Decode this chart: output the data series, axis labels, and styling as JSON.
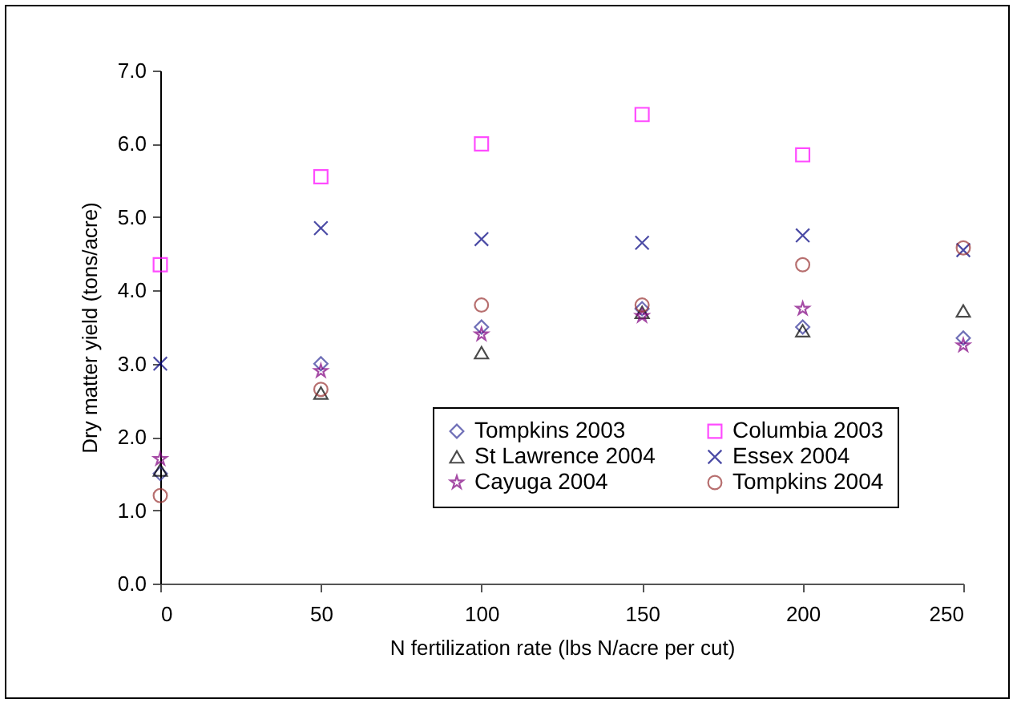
{
  "chart_data": {
    "type": "scatter",
    "xlabel": "N fertilization rate (lbs N/acre per cut)",
    "ylabel": "Dry matter yield (tons/acre)",
    "x": [
      0,
      50,
      100,
      150,
      200,
      250
    ],
    "xlim": [
      0,
      250
    ],
    "xticks": [
      0,
      50,
      100,
      150,
      200,
      250
    ],
    "ylim": [
      0,
      7
    ],
    "yticks": [
      {
        "value": 0,
        "label": "0.0"
      },
      {
        "value": 1,
        "label": "1.0"
      },
      {
        "value": 2,
        "label": "2.0"
      },
      {
        "value": 3,
        "label": "3.0"
      },
      {
        "value": 4,
        "label": "4.0"
      },
      {
        "value": 5,
        "label": "5.0"
      },
      {
        "value": 6,
        "label": "6.0"
      },
      {
        "value": 7,
        "label": "7.0"
      }
    ],
    "grid": false,
    "legend": "bottom right",
    "series": [
      {
        "name": "Tompkins 2003",
        "color": "#333399",
        "marker": "diamond",
        "values": [
          1.5,
          3.0,
          3.5,
          3.75,
          3.5,
          3.35
        ]
      },
      {
        "name": "Columbia 2003",
        "color": "#ff00ff",
        "marker": "square",
        "values": [
          4.35,
          5.55,
          6.0,
          6.4,
          5.85,
          null
        ]
      },
      {
        "name": "St Lawrence 2004",
        "color": "#000000",
        "marker": "triangle",
        "values": [
          1.55,
          2.6,
          3.15,
          3.7,
          3.45,
          3.72
        ]
      },
      {
        "name": "Essex 2004",
        "color": "#000080",
        "marker": "cross",
        "values": [
          3.0,
          4.85,
          4.7,
          4.65,
          4.75,
          4.55
        ]
      },
      {
        "name": "Cayuga 2004",
        "color": "#800080",
        "marker": "star",
        "values": [
          1.7,
          2.9,
          3.4,
          3.65,
          3.75,
          3.25
        ]
      },
      {
        "name": "Tompkins 2004",
        "color": "#993333",
        "marker": "circle",
        "values": [
          1.2,
          2.65,
          3.8,
          3.8,
          4.35,
          4.58
        ]
      }
    ]
  }
}
